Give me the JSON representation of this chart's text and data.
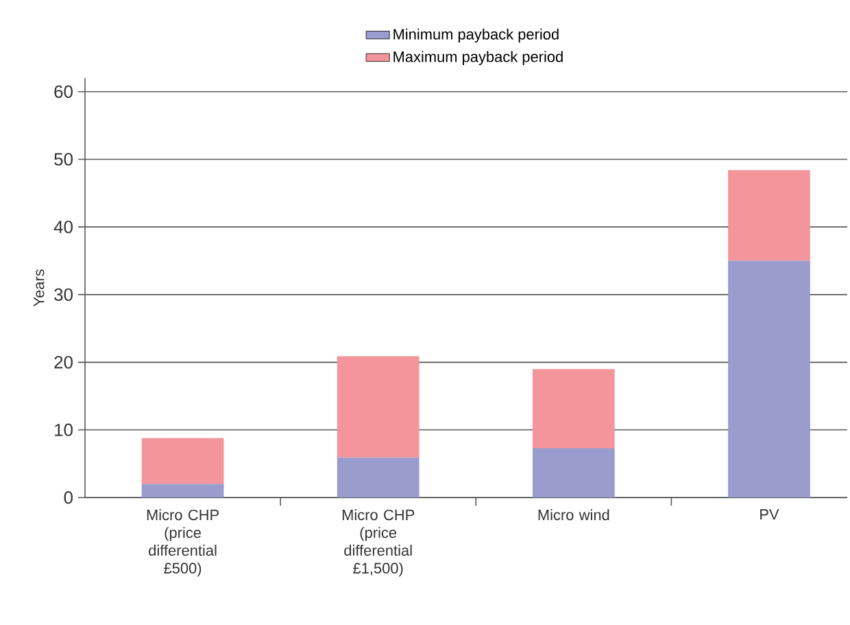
{
  "chart_data": {
    "type": "bar",
    "stacked": true,
    "ylabel": "Years",
    "categories": [
      "Micro CHP (price differential £500)",
      "Micro CHP (price differential £1,500)",
      "Micro wind",
      "PV"
    ],
    "series": [
      {
        "name": "Minimum payback period",
        "color": "#999ccc",
        "values": [
          2.0,
          5.9,
          7.3,
          35.0
        ]
      },
      {
        "name": "Maximum payback period",
        "color": "#f4959b",
        "values": [
          6.8,
          15.0,
          11.7,
          13.4
        ]
      }
    ],
    "ylim": [
      0,
      62
    ],
    "yticks": [
      0,
      10,
      20,
      30,
      40,
      50,
      60
    ],
    "grid": "y",
    "legend": "top"
  }
}
